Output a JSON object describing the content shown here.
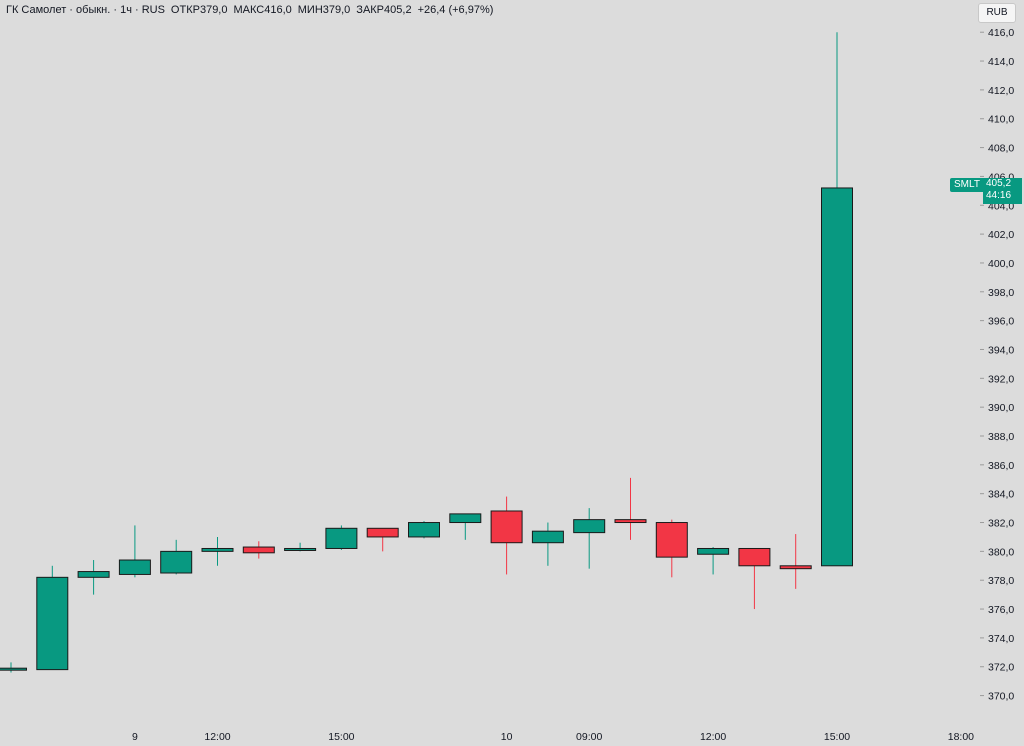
{
  "header": {
    "symbol": "ГК Самолет · обыкн. · 1ч · RUS",
    "open_label": "ОТКР",
    "open": "379,0",
    "high_label": "МАКС",
    "high": "416,0",
    "low_label": "МИН",
    "low": "379,0",
    "close_label": "ЗАКР",
    "close": "405,2",
    "change": "+26,4 (+6,97%)"
  },
  "currency_button": "RUB",
  "last_price": {
    "ticker": "SMLT",
    "price": "405,2",
    "countdown": "44:16"
  },
  "colors": {
    "up": "#089981",
    "down": "#f23645",
    "background": "#dcdcdc"
  },
  "chart_data": {
    "type": "candlestick",
    "ylim": [
      369,
      416.5
    ],
    "y_ticks": [
      370,
      372,
      374,
      376,
      378,
      380,
      382,
      384,
      386,
      388,
      390,
      392,
      394,
      396,
      398,
      400,
      402,
      404,
      406,
      408,
      410,
      412,
      414,
      416
    ],
    "y_tick_labels": [
      "370,0",
      "372,0",
      "374,0",
      "376,0",
      "378,0",
      "380,0",
      "382,0",
      "384,0",
      "386,0",
      "388,0",
      "390,0",
      "392,0",
      "394,0",
      "396,0",
      "398,0",
      "400,0",
      "402,0",
      "404,0",
      "406,0",
      "408,0",
      "410,0",
      "412,0",
      "414,0",
      "416,0"
    ],
    "x_labels": [
      "9",
      "12:00",
      "15:00",
      "10",
      "09:00",
      "12:00",
      "15:00",
      "18:00"
    ],
    "x_label_slots": [
      3,
      5,
      8,
      12,
      14,
      17,
      20,
      23
    ],
    "candles": [
      {
        "o": 371.9,
        "h": 372.3,
        "l": 371.6,
        "c": 371.9
      },
      {
        "o": 371.8,
        "h": 379.0,
        "l": 371.8,
        "c": 378.2
      },
      {
        "o": 378.2,
        "h": 379.4,
        "l": 377.0,
        "c": 378.6
      },
      {
        "o": 378.4,
        "h": 381.8,
        "l": 378.2,
        "c": 379.4
      },
      {
        "o": 378.5,
        "h": 380.8,
        "l": 378.4,
        "c": 380.0
      },
      {
        "o": 380.0,
        "h": 381.0,
        "l": 379.0,
        "c": 380.2
      },
      {
        "o": 380.3,
        "h": 380.7,
        "l": 379.5,
        "c": 379.9
      },
      {
        "o": 380.1,
        "h": 380.6,
        "l": 380.0,
        "c": 380.2
      },
      {
        "o": 380.2,
        "h": 381.8,
        "l": 380.1,
        "c": 381.6
      },
      {
        "o": 381.6,
        "h": 381.6,
        "l": 380.0,
        "c": 381.0
      },
      {
        "o": 381.0,
        "h": 382.1,
        "l": 380.9,
        "c": 382.0
      },
      {
        "o": 382.0,
        "h": 382.6,
        "l": 380.8,
        "c": 382.6
      },
      {
        "o": 382.8,
        "h": 383.8,
        "l": 378.4,
        "c": 380.6
      },
      {
        "o": 380.6,
        "h": 382.0,
        "l": 379.0,
        "c": 381.4
      },
      {
        "o": 381.3,
        "h": 383.0,
        "l": 378.8,
        "c": 382.2
      },
      {
        "o": 382.2,
        "h": 385.1,
        "l": 380.8,
        "c": 382.0
      },
      {
        "o": 382.0,
        "h": 382.2,
        "l": 378.2,
        "c": 379.6
      },
      {
        "o": 379.8,
        "h": 380.3,
        "l": 378.4,
        "c": 380.2
      },
      {
        "o": 380.2,
        "h": 380.2,
        "l": 376.0,
        "c": 379.0
      },
      {
        "o": 379.0,
        "h": 381.2,
        "l": 377.4,
        "c": 378.8
      },
      {
        "o": 379.0,
        "h": 416.0,
        "l": 379.0,
        "c": 405.2
      }
    ]
  }
}
